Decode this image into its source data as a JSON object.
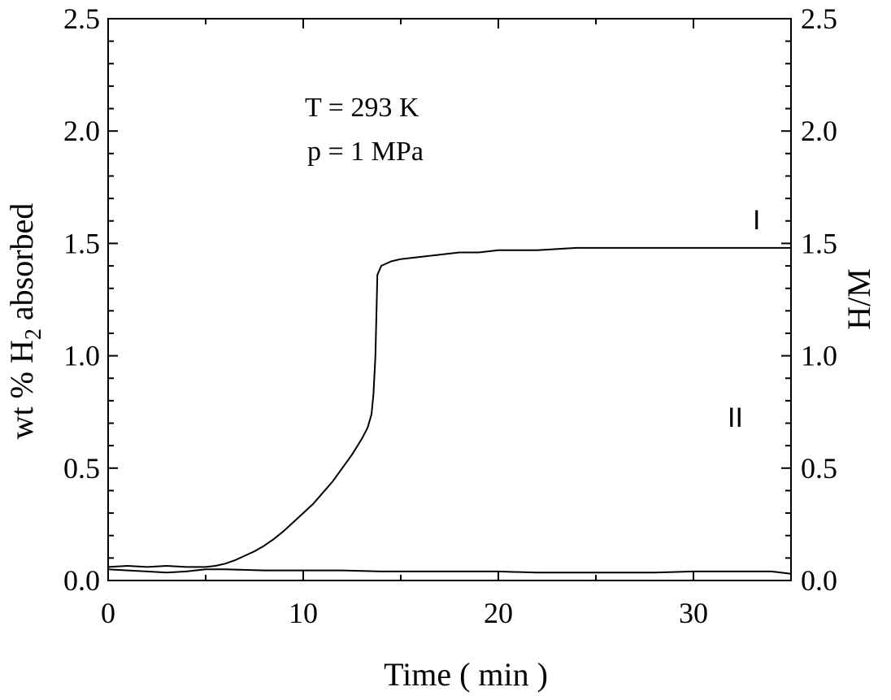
{
  "chart_data": {
    "type": "line",
    "title": "",
    "xlabel": "Time ( min )",
    "ylabel": {
      "main": "wt % H",
      "subscript": "2",
      "suffix": " absorbed"
    },
    "y2label": "H/M",
    "xlim": [
      0,
      35
    ],
    "ylim": [
      0,
      2.5
    ],
    "y2lim": [
      0,
      2.5
    ],
    "xticks": [
      0,
      10,
      20,
      30
    ],
    "xtick_labels": [
      "0",
      "10",
      "20",
      "30"
    ],
    "yticks": [
      0,
      0.5,
      1.0,
      1.5,
      2.0,
      2.5
    ],
    "ytick_labels": [
      "0.0",
      "0.5",
      "1.0",
      "1.5",
      "2.0",
      "2.5"
    ],
    "y2tick_labels": [
      "0.0",
      "0.5",
      "1.0",
      "1.5",
      "2.0",
      "2.5"
    ],
    "grid": false,
    "annotations": [
      "T = 293 K",
      "p = 1 MPa"
    ],
    "series": [
      {
        "name": "I",
        "x": [
          0,
          1,
          2,
          3,
          4,
          5,
          5.5,
          6,
          6.5,
          7,
          7.5,
          8,
          8.5,
          9,
          9.5,
          10,
          10.5,
          11,
          11.5,
          12,
          12.5,
          13,
          13.3,
          13.5,
          13.6,
          13.7,
          13.8,
          14,
          14.5,
          15,
          16,
          17,
          18,
          19,
          20,
          22,
          24,
          26,
          28,
          30,
          32,
          34,
          35
        ],
        "y": [
          0.06,
          0.065,
          0.06,
          0.065,
          0.06,
          0.06,
          0.065,
          0.075,
          0.09,
          0.11,
          0.13,
          0.155,
          0.185,
          0.22,
          0.26,
          0.3,
          0.34,
          0.39,
          0.44,
          0.5,
          0.56,
          0.63,
          0.68,
          0.74,
          0.83,
          1.0,
          1.36,
          1.4,
          1.42,
          1.43,
          1.44,
          1.45,
          1.46,
          1.46,
          1.47,
          1.47,
          1.48,
          1.48,
          1.48,
          1.48,
          1.48,
          1.48,
          1.48
        ]
      },
      {
        "name": "II",
        "x": [
          0,
          1,
          2,
          3,
          4,
          5,
          6,
          8,
          10,
          12,
          14,
          16,
          18,
          20,
          22,
          24,
          26,
          28,
          30,
          32,
          34,
          35
        ],
        "y": [
          0.05,
          0.045,
          0.04,
          0.035,
          0.04,
          0.05,
          0.05,
          0.045,
          0.045,
          0.045,
          0.04,
          0.04,
          0.04,
          0.04,
          0.035,
          0.035,
          0.035,
          0.035,
          0.04,
          0.04,
          0.04,
          0.03
        ]
      }
    ],
    "curve_labels": [
      "I",
      "II"
    ]
  }
}
